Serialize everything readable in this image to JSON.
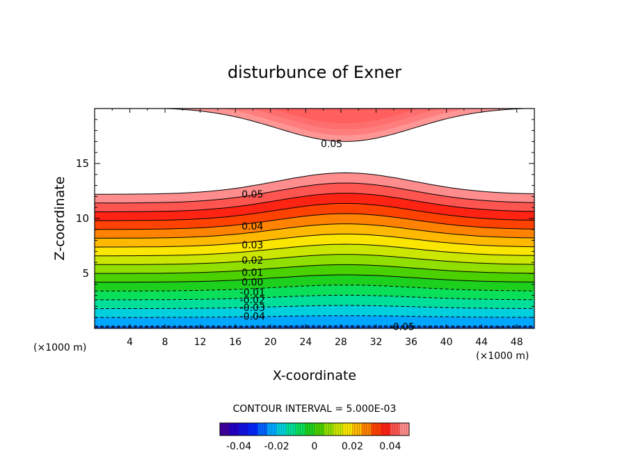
{
  "chart_data": {
    "type": "heatmap",
    "subtype": "filled-contour",
    "title": "disturbunce of Exner",
    "xlabel": "X-coordinate",
    "ylabel": "Z-coordinate",
    "x_unit_left": "(×1000 m)",
    "x_unit_right": "(×1000 m)",
    "xlim": [
      0,
      50
    ],
    "ylim": [
      0,
      20
    ],
    "xticks": [
      4,
      8,
      12,
      16,
      20,
      24,
      28,
      32,
      36,
      40,
      44,
      48
    ],
    "yticks": [
      5,
      10,
      15
    ],
    "contour_levels_labeled": [
      {
        "label": "0.05",
        "z_approx": 16.8,
        "x_approx": 26
      },
      {
        "label": "0.05",
        "z_approx": 12.2,
        "x_approx": 17
      },
      {
        "label": "0.04",
        "z_approx": 9.3,
        "x_approx": 17
      },
      {
        "label": "0.03",
        "z_approx": 7.6,
        "x_approx": 17
      },
      {
        "label": "0.02",
        "z_approx": 6.2,
        "x_approx": 17
      },
      {
        "label": "0.01",
        "z_approx": 5.1,
        "x_approx": 17
      },
      {
        "label": "0.00",
        "z_approx": 4.2,
        "x_approx": 17
      },
      {
        "label": "-0.01",
        "z_approx": 3.3,
        "x_approx": 17
      },
      {
        "label": "-0.02",
        "z_approx": 2.6,
        "x_approx": 17
      },
      {
        "label": "-0.03",
        "z_approx": 1.9,
        "x_approx": 17
      },
      {
        "label": "-0.04",
        "z_approx": 1.1,
        "x_approx": 17
      },
      {
        "label": "-0.05",
        "z_approx": 0.15,
        "x_approx": 34
      }
    ],
    "contour_interval_text": "CONTOUR INTERVAL = 5.000E-03",
    "colorbar": {
      "range": [
        -0.05,
        0.05
      ],
      "tick_labels": [
        "-0.04",
        "-0.02",
        "0",
        "0.02",
        "0.04"
      ],
      "tick_values": [
        -0.04,
        -0.02,
        0,
        0.02,
        0.04
      ]
    },
    "legend": "none",
    "grid": false
  }
}
